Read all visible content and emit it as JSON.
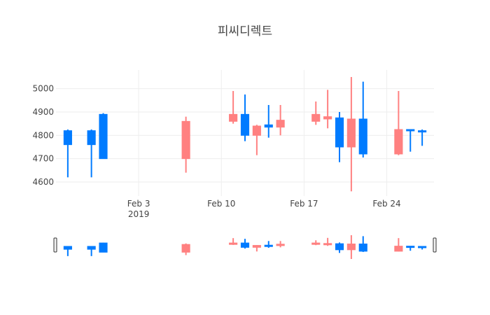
{
  "chart_data": {
    "type": "candlestick",
    "title": "피씨디렉트",
    "x": [
      "2019-01-28",
      "2019-01-30",
      "2019-01-31",
      "2019-02-07",
      "2019-02-11",
      "2019-02-12",
      "2019-02-13",
      "2019-02-14",
      "2019-02-15",
      "2019-02-18",
      "2019-02-19",
      "2019-02-20",
      "2019-02-21",
      "2019-02-22",
      "2019-02-25",
      "2019-02-26",
      "2019-02-27"
    ],
    "open": [
      4760,
      4760,
      4700,
      4860,
      4890,
      4800,
      4840,
      4835,
      4865,
      4890,
      4880,
      4750,
      4870,
      4720,
      4825,
      4820,
      4815
    ],
    "high": [
      4825,
      4825,
      4895,
      4880,
      4990,
      4975,
      4845,
      4930,
      4930,
      4945,
      4995,
      4900,
      5050,
      5030,
      4990,
      4825,
      4825
    ],
    "low": [
      4620,
      4620,
      4700,
      4640,
      4850,
      4775,
      4715,
      4790,
      4800,
      4845,
      4830,
      4685,
      4560,
      4705,
      4715,
      4730,
      4755
    ],
    "close": [
      4820,
      4820,
      4890,
      4700,
      4860,
      4890,
      4800,
      4845,
      4835,
      4860,
      4870,
      4875,
      4750,
      4870,
      4720,
      4825,
      4820
    ],
    "increasing_color": "#007BFF",
    "decreasing_color": "#FF8080",
    "ylim": [
      4540,
      5080
    ],
    "yticks": [
      4600,
      4700,
      4800,
      4900,
      5000
    ],
    "xticks": [
      {
        "date": "2019-02-03",
        "label": "Feb 3",
        "sub": "2019"
      },
      {
        "date": "2019-02-10",
        "label": "Feb 10",
        "sub": ""
      },
      {
        "date": "2019-02-17",
        "label": "Feb 17",
        "sub": ""
      },
      {
        "date": "2019-02-24",
        "label": "Feb 24",
        "sub": ""
      }
    ],
    "xrange": [
      "2019-01-27",
      "2019-02-28"
    ],
    "rangeslider": true,
    "grid": true,
    "legend": "none"
  }
}
